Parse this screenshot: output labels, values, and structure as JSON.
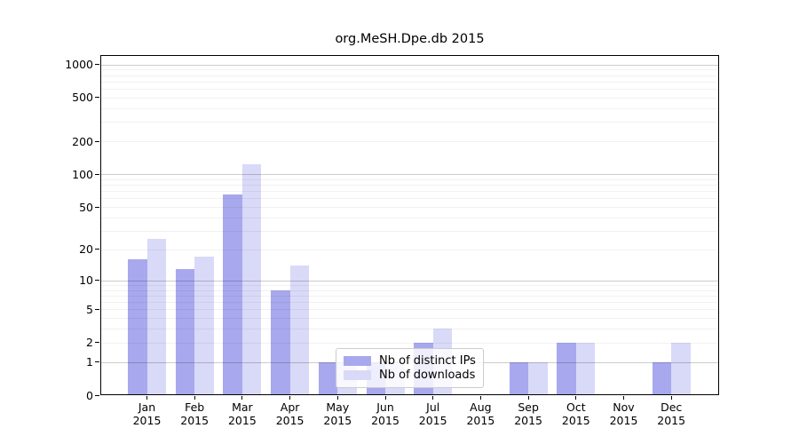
{
  "figure": {
    "title": "org.MeSH.Dpe.db 2015"
  },
  "chart_data": {
    "type": "bar",
    "title": "org.MeSH.Dpe.db 2015",
    "categories": [
      "Jan 2015",
      "Feb 2015",
      "Mar 2015",
      "Apr 2015",
      "May 2015",
      "Jun 2015",
      "Jul 2015",
      "Aug 2015",
      "Sep 2015",
      "Oct 2015",
      "Nov 2015",
      "Dec 2015"
    ],
    "series": [
      {
        "name": "Nb of distinct IPs",
        "color": "#a8a8ee",
        "values": [
          16,
          13,
          65,
          8,
          1,
          1,
          2,
          0,
          1,
          2,
          0,
          1
        ]
      },
      {
        "name": "Nb of downloads",
        "color": "#d9d9f8",
        "values": [
          25,
          17,
          123,
          14,
          1,
          1,
          3,
          0,
          1,
          2,
          0,
          2
        ]
      }
    ],
    "y_ticks": [
      0,
      1,
      2,
      5,
      10,
      20,
      50,
      100,
      200,
      500,
      1000
    ],
    "y_scale": "log1p",
    "ylim": [
      0,
      1250
    ],
    "xlabel": "",
    "ylabel": "",
    "grid": true,
    "legend_position": "inside lower center",
    "colors": {
      "major_gridline": "#cccccc",
      "minor_gridline": "#efefef",
      "axis": "#000000",
      "background": "#ffffff"
    }
  }
}
